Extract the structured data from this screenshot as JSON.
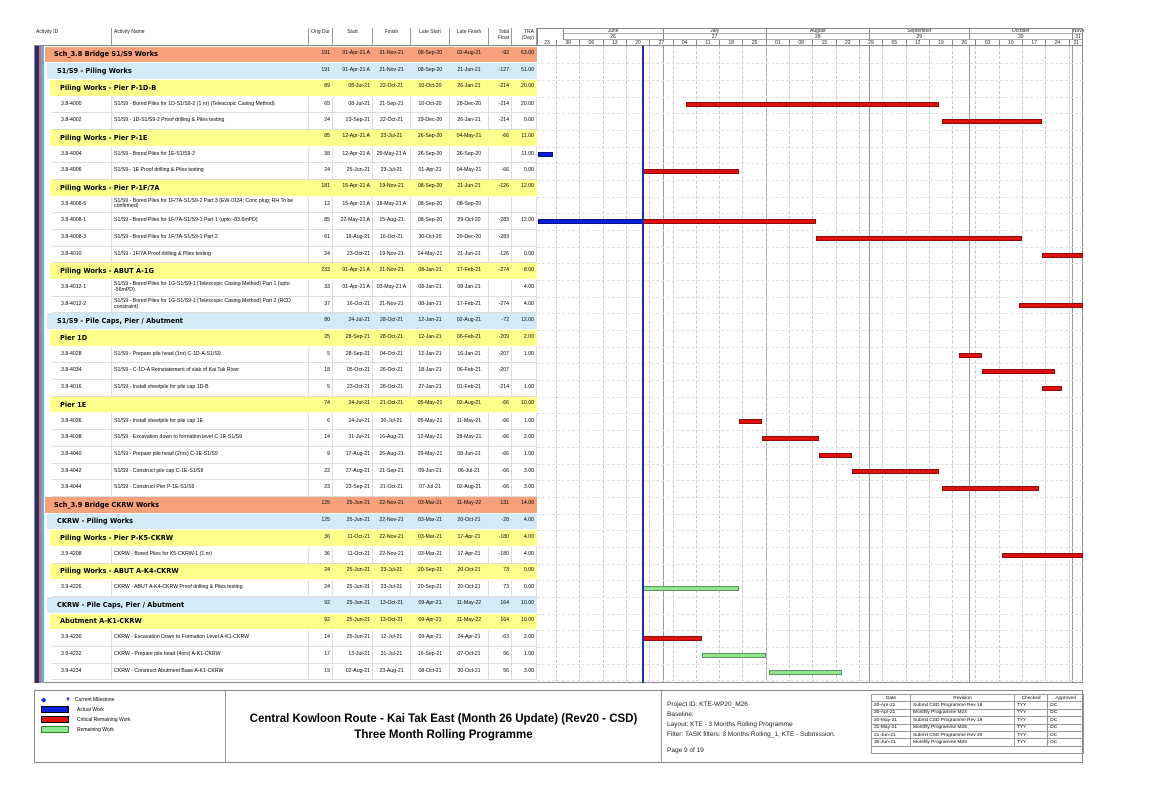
{
  "columns": {
    "activity_id": "Activity ID",
    "activity_name": "Activity Name",
    "orig_dur": "Orig Dur",
    "start": "Start",
    "finish": "Finish",
    "late_start": "Late Start",
    "late_finish": "Late Finish",
    "total_float": "Total Float",
    "tra": "TRA (Day)"
  },
  "timeline": {
    "data_date": "25-Jun-21",
    "months": [
      {
        "label": "June",
        "period": "26"
      },
      {
        "label": "July",
        "period": "27"
      },
      {
        "label": "August",
        "period": "28"
      },
      {
        "label": "September",
        "period": "29"
      },
      {
        "label": "October",
        "period": "30"
      },
      {
        "label": "Nove",
        "period": "31"
      }
    ],
    "weeks": [
      "23",
      "30",
      "06",
      "13",
      "20",
      "27",
      "04",
      "11",
      "18",
      "25",
      "01",
      "08",
      "15",
      "22",
      "29",
      "05",
      "12",
      "19",
      "26",
      "03",
      "10",
      "17",
      "24",
      "31"
    ]
  },
  "colors": {
    "wbs1": "#f6a07c",
    "wbs2": "#d3ebf6",
    "wbs3": "#ffff8c",
    "actual": "#0a1fd8",
    "critical": "#e01010",
    "remaining": "#8fe68f",
    "data_date_line": "#1a2cc8"
  },
  "rows": [
    {
      "level": "wbs1",
      "name": "Sch_3.8 Bridge S1/S9 Works",
      "orig_dur": "191",
      "start": "01-Apr-21 A",
      "finish": "21-Nov-21",
      "late_start": "08-Sep-20",
      "late_finish": "02-Aug-21",
      "total_float": "-92",
      "tra": "63.00"
    },
    {
      "level": "wbs2",
      "name": "S1/S9 - Piling Works",
      "orig_dur": "191",
      "start": "01-Apr-21 A",
      "finish": "21-Nov-21",
      "late_start": "08-Sep-20",
      "late_finish": "21-Jun-21",
      "total_float": "-127",
      "tra": "51.00"
    },
    {
      "level": "wbs3",
      "name": "Piling Works - Pier P-1D-B",
      "orig_dur": "89",
      "start": "08-Jul-21",
      "finish": "22-Oct-21",
      "late_start": "10-Oct-20",
      "late_finish": "26-Jan-21",
      "total_float": "-214",
      "tra": "20.00"
    },
    {
      "level": "task",
      "id": "3.8-4000",
      "name": "S1/S9 - Bored Piles for 1D-S1/S9-2 (1 nr) (Telescopic Casing Method)",
      "orig_dur": "65",
      "start": "08-Jul-21",
      "finish": "21-Sep-21",
      "late_start": "10-Oct-20",
      "late_finish": "28-Dec-20",
      "total_float": "-214",
      "tra": "20.00",
      "bar": "critical"
    },
    {
      "level": "task",
      "id": "3.8-4002",
      "name": "S1/S9 - 1D-S1/S9-2 Proof drilling & Piles testing",
      "orig_dur": "24",
      "start": "23-Sep-21",
      "finish": "22-Oct-21",
      "late_start": "29-Dec-20",
      "late_finish": "26-Jan-21",
      "total_float": "-214",
      "tra": "0.00",
      "bar": "critical"
    },
    {
      "level": "wbs3",
      "name": "Piling Works - Pier P-1E",
      "orig_dur": "85",
      "start": "12-Apr-21 A",
      "finish": "23-Jul-21",
      "late_start": "26-Sep-20",
      "late_finish": "04-May-21",
      "total_float": "-66",
      "tra": "11.00"
    },
    {
      "level": "task",
      "id": "3.8-4004",
      "name": "S1/S9 - Bored Piles for 1E-S1/S9-2",
      "orig_dur": "38",
      "start": "12-Apr-21 A",
      "finish": "29-May-21 A",
      "late_start": "26-Sep-20",
      "late_finish": "26-Sep-20",
      "total_float": "",
      "tra": "11.00",
      "bar": "actual"
    },
    {
      "level": "task",
      "id": "3.8-4006",
      "name": "S1/S9 - 1E Proof drilling & Piles testing",
      "orig_dur": "24",
      "start": "25-Jun-21",
      "finish": "23-Jul-21",
      "late_start": "01-Apr-21",
      "late_finish": "04-May-21",
      "total_float": "-66",
      "tra": "0.00",
      "bar": "critical"
    },
    {
      "level": "wbs3",
      "name": "Piling Works - Pier P-1F/7A",
      "orig_dur": "181",
      "start": "15-Apr-21 A",
      "finish": "19-Nov-21",
      "late_start": "08-Sep-20",
      "late_finish": "21-Jun-21",
      "total_float": "-126",
      "tra": "12.00"
    },
    {
      "level": "task",
      "id": "3.8-4008-6",
      "name": "S1/S9 - Bored Piles for 1F/7A-S1/S9-2 Part 3 (EW-0134; Conc plug; RH To be confirmed)",
      "orig_dur": "12",
      "start": "15-Apr-21 A",
      "finish": "18-May-21 A",
      "late_start": "08-Sep-20",
      "late_finish": "08-Sep-20",
      "total_float": "",
      "tra": "",
      "bar": "none"
    },
    {
      "level": "task",
      "id": "3.8-4008-1",
      "name": "S1/S9 - Bored Piles for 1F/7A-S1/S9-1 Part 1 (upto -83.6mPD)",
      "orig_dur": "85",
      "start": "22-May-21 A",
      "finish": "15-Aug-21",
      "late_start": "08-Sep-20",
      "late_finish": "29-Oct-20",
      "total_float": "-283",
      "tra": "12.00",
      "bar": "actual+critical"
    },
    {
      "level": "task",
      "id": "3.8-4008-3",
      "name": "S1/S9 - Bored Piles for 1F/7A-S1/S9-1 Part 2",
      "orig_dur": "61",
      "start": "16-Aug-21",
      "finish": "16-Oct-21",
      "late_start": "30-Oct-20",
      "late_finish": "29-Dec-20",
      "total_float": "-283",
      "tra": "",
      "bar": "critical"
    },
    {
      "level": "task",
      "id": "3.8-4010",
      "name": "S1/S9 - 1F/7A Proof drilling & Piles testing",
      "orig_dur": "24",
      "start": "23-Oct-21",
      "finish": "19-Nov-21",
      "late_start": "24-May-21",
      "late_finish": "21-Jun-21",
      "total_float": "-126",
      "tra": "0.00",
      "bar": "critical"
    },
    {
      "level": "wbs3",
      "name": "Piling Works - ABUT A-1G",
      "orig_dur": "233",
      "start": "01-Apr-21 A",
      "finish": "21-Nov-21",
      "late_start": "08-Jan-21",
      "late_finish": "17-Feb-21",
      "total_float": "-274",
      "tra": "8.00"
    },
    {
      "level": "task",
      "id": "3.8-4012-1",
      "name": "S1/S9 - Bored Piles for 1G-S1/S9-1 (Telescopic Casing Method) Part 1 (upto -56mPD)",
      "orig_dur": "33",
      "start": "01-Apr-21 A",
      "finish": "03-May-21 A",
      "late_start": "08-Jan-21",
      "late_finish": "08-Jan-21",
      "total_float": "",
      "tra": "4.00",
      "bar": "none"
    },
    {
      "level": "task",
      "id": "3.8-4012-2",
      "name": "S1/S9 - Bored Piles for 1G-S1/S9-1 (Telescopic Casing Method) Part 2 (RCD constraint)",
      "orig_dur": "37",
      "start": "16-Oct-21",
      "finish": "21-Nov-21",
      "late_start": "08-Jan-21",
      "late_finish": "17-Feb-21",
      "total_float": "-274",
      "tra": "4.00",
      "bar": "critical"
    },
    {
      "level": "wbs2",
      "name": "S1/S9 - Pile Caps, Pier / Abutment",
      "orig_dur": "80",
      "start": "24-Jul-21",
      "finish": "28-Oct-21",
      "late_start": "12-Jan-21",
      "late_finish": "02-Aug-21",
      "total_float": "-72",
      "tra": "12.00"
    },
    {
      "level": "wbs3",
      "name": "Pier 1D",
      "orig_dur": "25",
      "start": "28-Sep-21",
      "finish": "28-Oct-21",
      "late_start": "12-Jan-21",
      "late_finish": "06-Feb-21",
      "total_float": "-209",
      "tra": "2.00"
    },
    {
      "level": "task",
      "id": "3.8-4028",
      "name": "S1/S9 - Prepare pile head (1nr) C-1D-A-S1/S9",
      "orig_dur": "5",
      "start": "28-Sep-21",
      "finish": "04-Oct-21",
      "late_start": "12-Jan-21",
      "late_finish": "16-Jan-21",
      "total_float": "-207",
      "tra": "1.00",
      "bar": "critical"
    },
    {
      "level": "task",
      "id": "3.8-4034",
      "name": "S1/S9 - C-1D-A Reinstatement of slab of Kai Tak River",
      "orig_dur": "18",
      "start": "05-Oct-21",
      "finish": "26-Oct-21",
      "late_start": "18-Jan-21",
      "late_finish": "06-Feb-21",
      "total_float": "-207",
      "tra": "",
      "bar": "critical"
    },
    {
      "level": "task",
      "id": "3.8-4016",
      "name": "S1/S9 - Install sheetpile for pile cap 1D-B",
      "orig_dur": "5",
      "start": "23-Oct-21",
      "finish": "28-Oct-21",
      "late_start": "27-Jan-21",
      "late_finish": "01-Feb-21",
      "total_float": "-214",
      "tra": "1.00",
      "bar": "critical"
    },
    {
      "level": "wbs3",
      "name": "Pier 1E",
      "orig_dur": "74",
      "start": "24-Jul-21",
      "finish": "21-Oct-21",
      "late_start": "05-May-21",
      "late_finish": "02-Aug-21",
      "total_float": "-66",
      "tra": "10.00"
    },
    {
      "level": "task",
      "id": "3.8-4036",
      "name": "S1/S9 - Install sheetpile for pile cap 1E",
      "orig_dur": "6",
      "start": "24-Jul-21",
      "finish": "30-Jul-21",
      "late_start": "05-May-21",
      "late_finish": "11-May-21",
      "total_float": "-66",
      "tra": "1.00",
      "bar": "critical"
    },
    {
      "level": "task",
      "id": "3.8-4038",
      "name": "S1/S9 - Excavation down to formation level C-1E-S1/S9",
      "orig_dur": "14",
      "start": "31-Jul-21",
      "finish": "16-Aug-21",
      "late_start": "12-May-21",
      "late_finish": "28-May-21",
      "total_float": "-66",
      "tra": "2.00",
      "bar": "critical"
    },
    {
      "level": "task",
      "id": "3.8-4040",
      "name": "S1/S9 - Prepare pile head (2nrs) C-1E-S1/S9",
      "orig_dur": "9",
      "start": "17-Aug-21",
      "finish": "26-Aug-21",
      "late_start": "29-May-21",
      "late_finish": "08-Jun-21",
      "total_float": "-66",
      "tra": "1.00",
      "bar": "critical"
    },
    {
      "level": "task",
      "id": "3.8-4042",
      "name": "S1/S9 - Construct pile cap C-1E-S1/S9",
      "orig_dur": "22",
      "start": "27-Aug-21",
      "finish": "21-Sep-21",
      "late_start": "09-Jun-21",
      "late_finish": "06-Jul-21",
      "total_float": "-66",
      "tra": "3.00",
      "bar": "critical"
    },
    {
      "level": "task",
      "id": "3.8-4044",
      "name": "S1/S9 - Construct Pier P-1E-S1/S9",
      "orig_dur": "23",
      "start": "23-Sep-21",
      "finish": "21-Oct-21",
      "late_start": "07-Jul-21",
      "late_finish": "02-Aug-21",
      "total_float": "-66",
      "tra": "3.00",
      "bar": "critical"
    },
    {
      "level": "wbs1",
      "name": "Sch_3.9 Bridge CKRW Works",
      "orig_dur": "125",
      "start": "25-Jun-21",
      "finish": "22-Nov-21",
      "late_start": "03-Mar-21",
      "late_finish": "11-May-22",
      "total_float": "131",
      "tra": "14.00"
    },
    {
      "level": "wbs2",
      "name": "CKRW - Piling Works",
      "orig_dur": "125",
      "start": "25-Jun-21",
      "finish": "22-Nov-21",
      "late_start": "03-Mar-21",
      "late_finish": "20-Oct-21",
      "total_float": "-28",
      "tra": "4.00"
    },
    {
      "level": "wbs3",
      "name": "Piling Works - Pier P-K5-CKRW",
      "orig_dur": "36",
      "start": "11-Oct-21",
      "finish": "22-Nov-21",
      "late_start": "03-Mar-21",
      "late_finish": "17-Apr-21",
      "total_float": "-180",
      "tra": "4.00"
    },
    {
      "level": "task",
      "id": "3.9-4208",
      "name": "CKRW - Bored Piles for K5-CKRW-1 (1 nr)",
      "orig_dur": "36",
      "start": "11-Oct-21",
      "finish": "22-Nov-21",
      "late_start": "03-Mar-21",
      "late_finish": "17-Apr-21",
      "total_float": "-180",
      "tra": "4.00",
      "bar": "critical"
    },
    {
      "level": "wbs3",
      "name": "Piling Works - ABUT A-K4-CKRW",
      "orig_dur": "24",
      "start": "25-Jun-21",
      "finish": "23-Jul-21",
      "late_start": "20-Sep-21",
      "late_finish": "20-Oct-21",
      "total_float": "73",
      "tra": "0.00"
    },
    {
      "level": "task",
      "id": "3.9-4226",
      "name": "CKRW - ABUT A-K4-CKRW Proof drilling & Piles testing",
      "orig_dur": "24",
      "start": "25-Jun-21",
      "finish": "23-Jul-21",
      "late_start": "20-Sep-21",
      "late_finish": "20-Oct-21",
      "total_float": "73",
      "tra": "0.00",
      "bar": "remaining"
    },
    {
      "level": "wbs2",
      "name": "CKRW - Pile Caps, Pier / Abutment",
      "orig_dur": "92",
      "start": "25-Jun-21",
      "finish": "13-Oct-21",
      "late_start": "09-Apr-21",
      "late_finish": "11-May-22",
      "total_float": "164",
      "tra": "10.00"
    },
    {
      "level": "wbs3",
      "name": "Abutment A-K1-CKRW",
      "orig_dur": "92",
      "start": "25-Jun-21",
      "finish": "13-Oct-21",
      "late_start": "09-Apr-21",
      "late_finish": "11-May-22",
      "total_float": "164",
      "tra": "10.00"
    },
    {
      "level": "task",
      "id": "3.9-4230",
      "name": "CKRW - Excavation Down to Formation Level A-K1-CKRW",
      "orig_dur": "14",
      "start": "25-Jun-21",
      "finish": "12-Jul-21",
      "late_start": "09-Apr-21",
      "late_finish": "24-Apr-21",
      "total_float": "-63",
      "tra": "2.00",
      "bar": "critical"
    },
    {
      "level": "task",
      "id": "3.9-4232",
      "name": "CKRW - Prepare pile head (4nrs) A-K1-CKRW",
      "orig_dur": "17",
      "start": "13-Jul-21",
      "finish": "31-Jul-21",
      "late_start": "16-Sep-21",
      "late_finish": "07-Oct-21",
      "total_float": "56",
      "tra": "1.00",
      "bar": "remaining"
    },
    {
      "level": "task",
      "id": "3.9-4234",
      "name": "CKRW - Construct Abutment Base A-K1-CKRW",
      "orig_dur": "19",
      "start": "02-Aug-21",
      "finish": "23-Aug-21",
      "late_start": "08-Oct-21",
      "late_finish": "30-Oct-21",
      "total_float": "56",
      "tra": "3.00",
      "bar": "remaining"
    }
  ],
  "legend": {
    "current_milestone": "Current Milestone",
    "actual_work": "Actual Work",
    "critical_remaining": "Critical Remaining Work",
    "remaining_work": "Remaining Work"
  },
  "title": {
    "line1": "Central Kowloon Route - Kai Tak East (Month 26 Update) (Rev20 - CSD)",
    "line2": "Three Month Rolling Programme"
  },
  "project": {
    "project_id": "Project ID: KTE-WP20_M26",
    "baseline": "Baseline:",
    "layout": "Layout: KTE - 3 Months Rolling Programme",
    "filter": "Filter: TASK filters: 3 Months Rolling_1, KTE - Submission.",
    "page": "Page 9 of 19"
  },
  "revisions": {
    "headers": [
      "Date",
      "Revision",
      "Checked",
      "Approved"
    ],
    "rows": [
      [
        "20-Apr-21",
        "Submit CSD Programme Rev 18",
        "TYY",
        "DC"
      ],
      [
        "30-Apr-21",
        "Monthly Programme M24",
        "TYY",
        "DC"
      ],
      [
        "20-May-21",
        "Submit CSD Programme Rev 19",
        "TYY",
        "DC"
      ],
      [
        "31-May-21",
        "Monthly Programme M25",
        "TYY",
        "DC"
      ],
      [
        "21-Jun-21",
        "Submit CSD Programme Rev 20",
        "TYY",
        "DC"
      ],
      [
        "30-Jun-21",
        "Monthly Programme M26",
        "TYY",
        "DC"
      ]
    ]
  }
}
